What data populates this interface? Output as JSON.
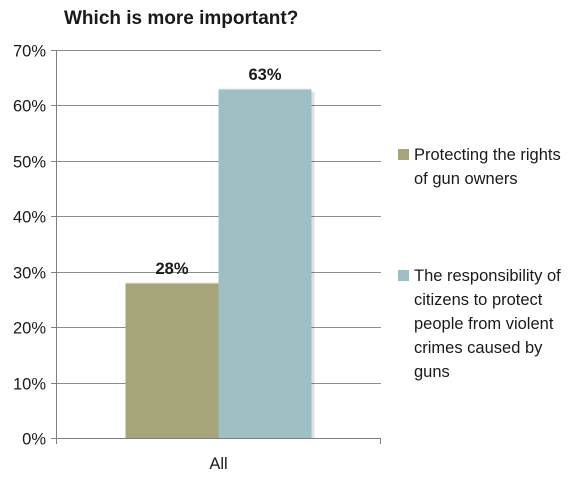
{
  "chart_data": {
    "type": "bar",
    "title": "Which is more important?",
    "categories": [
      "All"
    ],
    "series": [
      {
        "name": "Protecting the rights of gun owners",
        "values": [
          28
        ],
        "label": "28%",
        "color": "#a6a57a"
      },
      {
        "name": "The responsibility of citizens to protect people from violent crimes caused by guns",
        "values": [
          63
        ],
        "label": "63%",
        "color": "#9ebfc3"
      }
    ],
    "ylim": [
      0,
      70
    ],
    "yticks": [
      0,
      10,
      20,
      30,
      40,
      50,
      60,
      70
    ],
    "ytick_labels": [
      "0%",
      "10%",
      "20%",
      "30%",
      "40%",
      "50%",
      "60%",
      "70%"
    ],
    "xlabel": "",
    "ylabel": "",
    "grid": true,
    "legend_position": "right"
  }
}
